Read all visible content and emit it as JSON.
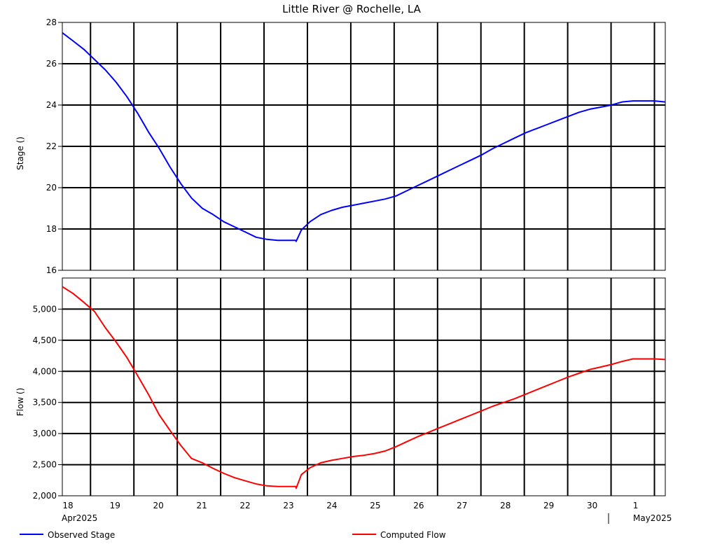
{
  "chart_data": {
    "type": "line",
    "title": "Little River @ Rochelle, LA",
    "x_day_labels": [
      "18",
      "19",
      "20",
      "21",
      "22",
      "23",
      "24",
      "25",
      "26",
      "27",
      "28",
      "29",
      "30",
      "1"
    ],
    "x_month_labels": {
      "start": "Apr2025",
      "end": "May2025"
    },
    "panels": [
      {
        "id": "stage",
        "ylabel": "Stage ()",
        "ylim": [
          16,
          28
        ],
        "yticks": [
          "16",
          "18",
          "20",
          "22",
          "24",
          "26",
          "28"
        ],
        "series": [
          {
            "name": "Observed Stage",
            "color": "#0000ff",
            "x_days": [
              18.0,
              18.25,
              18.5,
              18.75,
              19.0,
              19.25,
              19.5,
              19.75,
              20.0,
              20.25,
              20.5,
              20.75,
              21.0,
              21.25,
              21.5,
              21.75,
              22.0,
              22.25,
              22.5,
              22.75,
              23.0,
              23.25,
              23.42,
              23.43,
              23.55,
              23.75,
              24.0,
              24.25,
              24.5,
              24.75,
              25.0,
              25.25,
              25.5,
              25.75,
              26.0,
              26.25,
              26.5,
              26.75,
              27.0,
              27.25,
              27.5,
              27.75,
              28.0,
              28.25,
              28.5,
              28.75,
              29.0,
              29.25,
              29.5,
              29.75,
              30.0,
              30.25,
              30.5,
              30.75,
              31.0,
              31.25,
              31.5,
              31.75,
              32.0
            ],
            "y": [
              27.5,
              27.1,
              26.7,
              26.2,
              25.7,
              25.1,
              24.4,
              23.6,
              22.7,
              21.9,
              21.0,
              20.2,
              19.5,
              19.0,
              18.7,
              18.35,
              18.1,
              17.85,
              17.6,
              17.5,
              17.45,
              17.45,
              17.45,
              17.4,
              17.95,
              18.35,
              18.7,
              18.9,
              19.05,
              19.15,
              19.25,
              19.35,
              19.45,
              19.6,
              19.85,
              20.1,
              20.35,
              20.6,
              20.85,
              21.1,
              21.35,
              21.6,
              21.9,
              22.15,
              22.4,
              22.65,
              22.85,
              23.05,
              23.25,
              23.45,
              23.65,
              23.8,
              23.9,
              24.0,
              24.15,
              24.2,
              24.2,
              24.2,
              24.15
            ]
          }
        ]
      },
      {
        "id": "flow",
        "ylabel": "Flow ()",
        "ylim": [
          2000,
          5500
        ],
        "yticks": [
          "2,000",
          "2,500",
          "3,000",
          "3,500",
          "4,000",
          "4,500",
          "5,000"
        ],
        "series": [
          {
            "name": "Computed Flow",
            "color": "#ff0000",
            "x_days": [
              18.0,
              18.25,
              18.5,
              18.75,
              19.0,
              19.25,
              19.5,
              19.75,
              20.0,
              20.25,
              20.5,
              20.75,
              21.0,
              21.25,
              21.5,
              21.75,
              22.0,
              22.25,
              22.5,
              22.75,
              23.0,
              23.25,
              23.42,
              23.43,
              23.55,
              23.75,
              24.0,
              24.25,
              24.5,
              24.75,
              25.0,
              25.25,
              25.5,
              25.75,
              26.0,
              26.25,
              26.5,
              26.75,
              27.0,
              27.25,
              27.5,
              27.75,
              28.0,
              28.25,
              28.5,
              28.75,
              29.0,
              29.25,
              29.5,
              29.75,
              30.0,
              30.25,
              30.5,
              30.75,
              31.0,
              31.25,
              31.5,
              31.75,
              32.0
            ],
            "y": [
              5360,
              5250,
              5110,
              4960,
              4700,
              4470,
              4220,
              3930,
              3630,
              3300,
              3050,
              2810,
              2600,
              2530,
              2440,
              2360,
              2290,
              2240,
              2190,
              2160,
              2150,
              2150,
              2150,
              2120,
              2340,
              2450,
              2530,
              2570,
              2600,
              2630,
              2650,
              2680,
              2720,
              2790,
              2870,
              2950,
              3020,
              3090,
              3160,
              3230,
              3300,
              3370,
              3440,
              3500,
              3560,
              3630,
              3700,
              3770,
              3840,
              3910,
              3970,
              4030,
              4070,
              4110,
              4160,
              4200,
              4200,
              4200,
              4190
            ]
          }
        ]
      }
    ],
    "legend": [
      {
        "label": "Observed Stage",
        "color": "#0000ff"
      },
      {
        "label": "Computed Flow",
        "color": "#ff0000"
      }
    ],
    "grid": true
  }
}
